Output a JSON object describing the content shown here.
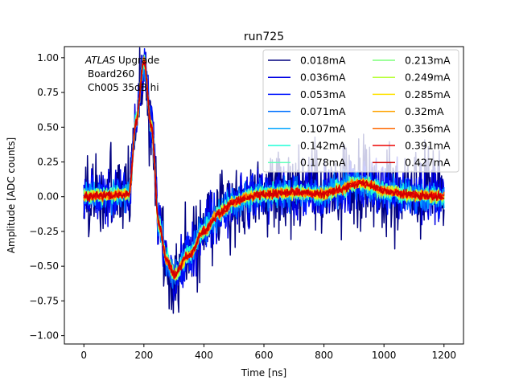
{
  "chart_data": {
    "type": "line",
    "title": "run725",
    "xlabel": "Time [ns]",
    "ylabel": "Amplitude [ADC counts]",
    "xlim": [
      -65,
      1265
    ],
    "ylim": [
      -1.06,
      1.08
    ],
    "xticks": [
      0,
      200,
      400,
      600,
      800,
      1000,
      1200
    ],
    "yticks": [
      -1.0,
      -0.75,
      -0.5,
      -0.25,
      0.0,
      0.25,
      0.5,
      0.75,
      1.0
    ],
    "xtick_labels": [
      "0",
      "200",
      "400",
      "600",
      "800",
      "1000",
      "1200"
    ],
    "ytick_labels": [
      "−1.00",
      "−0.75",
      "−0.50",
      "−0.25",
      "0.00",
      "0.25",
      "0.50",
      "0.75",
      "1.00"
    ],
    "annotation": {
      "italic": "ATLAS",
      "rest": " Upgrade",
      "line2": "Board260",
      "line3": "Ch005 35dB hi"
    },
    "legend_location": "top-right",
    "pulse_shape": {
      "points_t": [
        0,
        150,
        175,
        200,
        225,
        250,
        275,
        300,
        350,
        400,
        450,
        500,
        550,
        600,
        700,
        800,
        850,
        900,
        925,
        950,
        1000,
        1100,
        1200
      ],
      "points_v": [
        0.0,
        0.02,
        0.55,
        0.98,
        0.5,
        -0.2,
        -0.45,
        -0.56,
        -0.42,
        -0.25,
        -0.12,
        -0.04,
        0.0,
        0.02,
        0.03,
        0.02,
        0.05,
        0.09,
        0.1,
        0.08,
        0.04,
        0.01,
        0.0
      ]
    },
    "series": [
      {
        "name": "0.018mA",
        "color": "#00007f",
        "noise": 0.3
      },
      {
        "name": "0.036mA",
        "color": "#0000e3",
        "noise": 0.18
      },
      {
        "name": "0.053mA",
        "color": "#0015ff",
        "noise": 0.13
      },
      {
        "name": "0.071mA",
        "color": "#0070ff",
        "noise": 0.1
      },
      {
        "name": "0.107mA",
        "color": "#00a4ff",
        "noise": 0.075
      },
      {
        "name": "0.142mA",
        "color": "#1fffd7",
        "noise": 0.06
      },
      {
        "name": "0.178mA",
        "color": "#60ffb9",
        "noise": 0.05
      },
      {
        "name": "0.213mA",
        "color": "#7dff7a",
        "noise": 0.045
      },
      {
        "name": "0.249mA",
        "color": "#b9ff3c",
        "noise": 0.04
      },
      {
        "name": "0.285mA",
        "color": "#ffe200",
        "noise": 0.035
      },
      {
        "name": "0.32mA",
        "color": "#ffa300",
        "noise": 0.032
      },
      {
        "name": "0.356mA",
        "color": "#ff6800",
        "noise": 0.03
      },
      {
        "name": "0.391mA",
        "color": "#ed0400",
        "noise": 0.028
      },
      {
        "name": "0.427mA",
        "color": "#d00000",
        "noise": 0.026
      }
    ]
  }
}
